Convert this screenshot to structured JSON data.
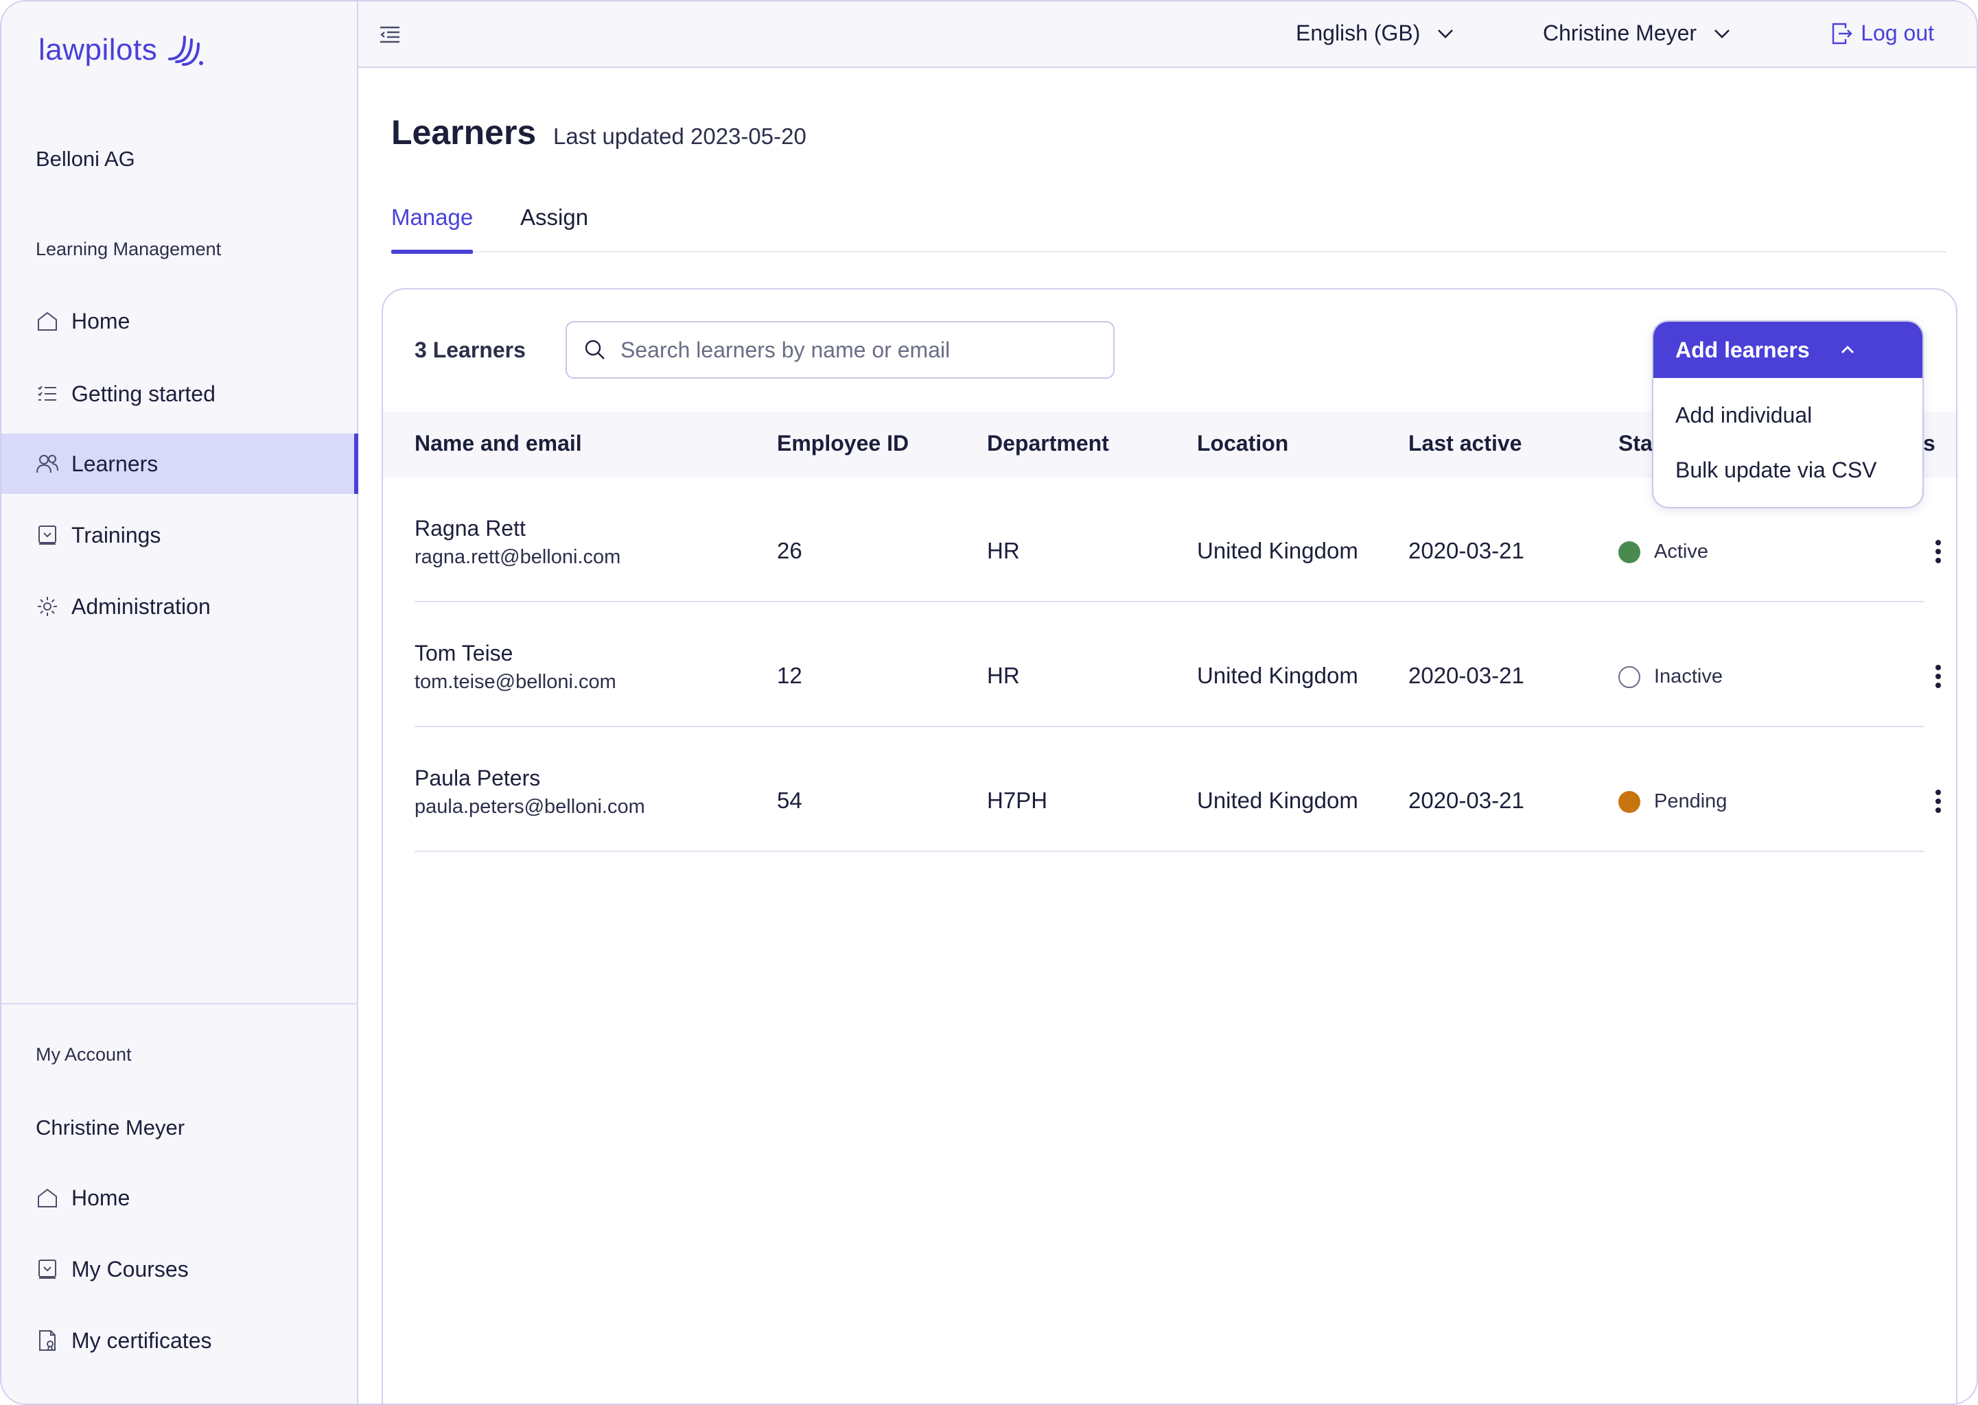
{
  "brand": {
    "name": "lawpilots"
  },
  "sidebar": {
    "org": "Belloni AG",
    "section_learning": "Learning Management",
    "items": [
      {
        "label": "Home",
        "icon": "home-icon"
      },
      {
        "label": "Getting started",
        "icon": "checklist-icon"
      },
      {
        "label": "Learners",
        "icon": "users-icon",
        "active": true
      },
      {
        "label": "Trainings",
        "icon": "training-icon"
      },
      {
        "label": "Administration",
        "icon": "gear-icon"
      }
    ],
    "section_account": "My Account",
    "account_name": "Christine Meyer",
    "account_items": [
      {
        "label": "Home",
        "icon": "home-icon"
      },
      {
        "label": "My Courses",
        "icon": "courses-icon"
      },
      {
        "label": "My certificates",
        "icon": "certificate-icon"
      }
    ]
  },
  "topbar": {
    "language": "English (GB)",
    "user": "Christine Meyer",
    "logout": "Log out"
  },
  "page": {
    "title": "Learners",
    "subtitle": "Last updated 2023-05-20",
    "tabs": [
      {
        "label": "Manage",
        "active": true
      },
      {
        "label": "Assign",
        "active": false
      }
    ]
  },
  "table": {
    "count_label": "3 Learners",
    "search_placeholder": "Search learners by name or email",
    "columns": [
      "Name and email",
      "Employee ID",
      "Department",
      "Location",
      "Last active",
      "Sta",
      "s"
    ],
    "rows": [
      {
        "name": "Ragna Rett",
        "email": "ragna.rett@belloni.com",
        "employee_id": "26",
        "department": "HR",
        "location": "United Kingdom",
        "last_active": "2020-03-21",
        "status": "Active",
        "status_color": "#4a8a4f"
      },
      {
        "name": "Tom Teise",
        "email": "tom.teise@belloni.com",
        "employee_id": "12",
        "department": "HR",
        "location": "United Kingdom",
        "last_active": "2020-03-21",
        "status": "Inactive",
        "status_color": "#ffffff"
      },
      {
        "name": "Paula Peters",
        "email": "paula.peters@belloni.com",
        "employee_id": "54",
        "department": "H7PH",
        "location": "United Kingdom",
        "last_active": "2020-03-21",
        "status": "Pending",
        "status_color": "#c8750f"
      }
    ]
  },
  "add_menu": {
    "button": "Add learners",
    "items": [
      "Add individual",
      "Bulk update via CSV"
    ]
  },
  "colors": {
    "accent": "#4a40d8",
    "sidebar_bg": "#f6f6fb",
    "active_bg": "#d9dafa"
  }
}
